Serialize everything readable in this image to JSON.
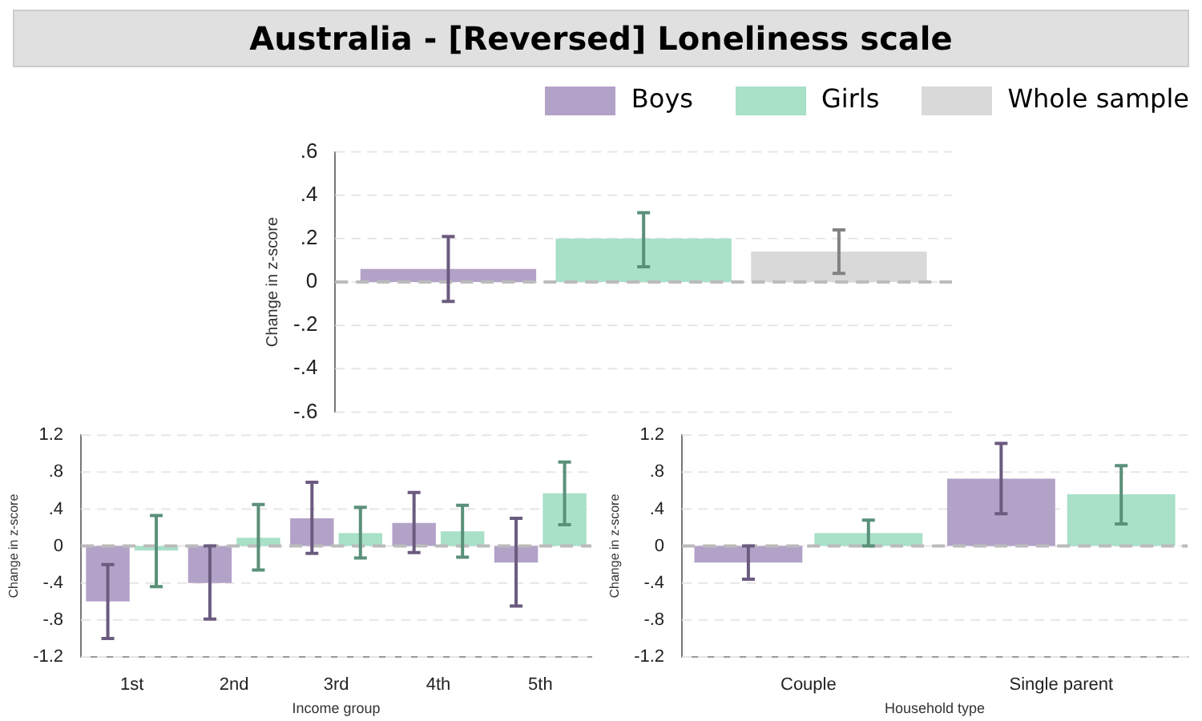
{
  "chart_data": [
    {
      "type": "bar",
      "title": "Australia - [Reversed] Loneliness scale",
      "ylabel": "Change in z-score",
      "categories": [
        null
      ],
      "series": [
        {
          "name": "Boys",
          "color": "#b3a2c8",
          "values": [
            0.06
          ],
          "errors": [
            [
              -0.09,
              0.21
            ]
          ]
        },
        {
          "name": "Girls",
          "color": "#a8e0c8",
          "values": [
            0.2
          ],
          "errors": [
            [
              0.07,
              0.32
            ]
          ]
        },
        {
          "name": "Whole sample",
          "color": "#d9d9d9",
          "values": [
            0.14
          ],
          "errors": [
            [
              0.04,
              0.24
            ]
          ]
        }
      ],
      "ylim": [
        -0.6,
        0.6
      ],
      "yticks": [
        {
          "value": -0.6,
          "label": "-.6"
        },
        {
          "value": -0.4,
          "label": "-.4"
        },
        {
          "value": -0.2,
          "label": "-.2"
        },
        0,
        {
          "value": 0.2,
          "label": ".2"
        },
        {
          "value": 0.4,
          "label": ".4"
        },
        {
          "value": 0.6,
          "label": ".6"
        }
      ],
      "grid": "y",
      "legend": "top right",
      "tick_labels": "y",
      "ref_lines": [
        {
          "axis": "y",
          "value": 0,
          "color": "#bbbbbb",
          "line_style": "dashed"
        }
      ]
    },
    {
      "type": "bar",
      "xlabel": "Income group",
      "ylabel": "Change in z-score",
      "categories": [
        "1st",
        "2nd",
        "3rd",
        "4th",
        "5th"
      ],
      "series": [
        {
          "color": "#b3a2c8",
          "values": [
            -0.6,
            -0.4,
            0.3,
            0.25,
            -0.18
          ],
          "errors": [
            [
              -1.0,
              -0.2
            ],
            [
              -0.79,
              0.0
            ],
            [
              -0.08,
              0.69
            ],
            [
              -0.07,
              0.58
            ],
            [
              -0.65,
              0.3
            ]
          ]
        },
        {
          "color": "#a8e0c8",
          "values": [
            -0.05,
            0.09,
            0.14,
            0.16,
            0.57
          ],
          "errors": [
            [
              -0.44,
              0.33
            ],
            [
              -0.26,
              0.45
            ],
            [
              -0.13,
              0.42
            ],
            [
              -0.12,
              0.44
            ],
            [
              0.23,
              0.91
            ]
          ]
        }
      ],
      "ylim": [
        -1.2,
        1.2
      ],
      "yticks": [
        -1.2,
        {
          "value": -0.8,
          "label": "-.8"
        },
        {
          "value": -0.4,
          "label": "-.4"
        },
        0,
        {
          "value": 0.4,
          "label": ".4"
        },
        {
          "value": 0.8,
          "label": ".8"
        },
        1.2
      ],
      "grid": "y",
      "ref_lines": [
        {
          "axis": "y",
          "value": 0,
          "color": "#bbbbbb",
          "line_style": "dashed"
        }
      ]
    },
    {
      "type": "bar",
      "xlabel": "Household type",
      "ylabel": "Change in z-score",
      "categories": [
        "Couple",
        "Single parent"
      ],
      "series": [
        {
          "color": "#b3a2c8",
          "values": [
            -0.18,
            0.73
          ],
          "errors": [
            [
              -0.36,
              0.0
            ],
            [
              0.35,
              1.11
            ]
          ]
        },
        {
          "color": "#a8e0c8",
          "values": [
            0.14,
            0.56
          ],
          "errors": [
            [
              0.0,
              0.28
            ],
            [
              0.24,
              0.87
            ]
          ]
        }
      ],
      "ylim": [
        -1.2,
        1.2
      ],
      "yticks": [
        -1.2,
        {
          "value": -0.8,
          "label": "-.8"
        },
        {
          "value": -0.4,
          "label": "-.4"
        },
        0,
        {
          "value": 0.4,
          "label": ".4"
        },
        {
          "value": 0.8,
          "label": ".8"
        },
        1.2
      ],
      "grid": "y",
      "ref_lines": [
        {
          "axis": "y",
          "value": 0,
          "color": "#bbbbbb",
          "line_style": "dashed"
        }
      ]
    }
  ]
}
